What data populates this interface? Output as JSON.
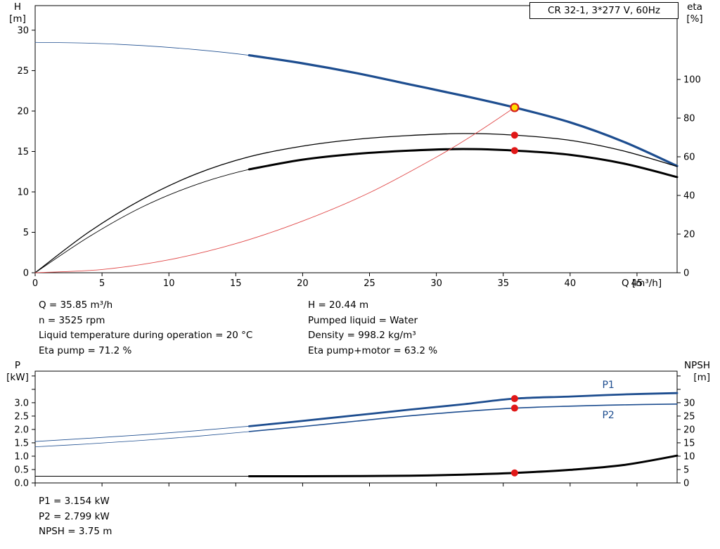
{
  "title_box": "CR 32-1, 3*277 V, 60Hz",
  "info_top": {
    "left": [
      "Q = 35.85 m³/h",
      "n = 3525 rpm",
      "Liquid temperature during operation = 20 °C",
      "Eta pump = 71.2 %"
    ],
    "right": [
      "H = 20.44 m",
      "Pumped liquid = Water",
      "Density = 998.2 kg/m³",
      "Eta pump+motor = 63.2 %"
    ]
  },
  "info_bottom": [
    "P1 = 3.154 kW",
    "P2 = 2.799 kW",
    "NPSH = 3.75 m"
  ],
  "colors": {
    "curve_blue": "#1d4d8f",
    "curve_black": "#000000",
    "system_red": "#e04848",
    "dot_red": "#e01818",
    "dot_yellow": "#ffdf00"
  },
  "chart_data": [
    {
      "type": "line",
      "title": "CR 32-1, 3*277 V, 60Hz",
      "x_label": "Q [m³/h]",
      "y_left_label": "H",
      "y_left_unit": "[m]",
      "y_right_label": "eta",
      "y_right_unit": "[%]",
      "x_range": [
        0,
        48
      ],
      "y_left_range": [
        0,
        33.04
      ],
      "y_right_range": [
        0,
        138.2
      ],
      "grid": false,
      "x_ticks": [
        {
          "v": 0,
          "label": "0"
        },
        {
          "v": 5,
          "label": "5"
        },
        {
          "v": 10,
          "label": "10"
        },
        {
          "v": 15,
          "label": "15"
        },
        {
          "v": 20,
          "label": "20"
        },
        {
          "v": 25,
          "label": "25"
        },
        {
          "v": 30,
          "label": "30"
        },
        {
          "v": 35,
          "label": "35"
        },
        {
          "v": 40,
          "label": "40"
        },
        {
          "v": 45,
          "label": "45"
        }
      ],
      "left_ticks": [
        {
          "v": 0,
          "label": "0"
        },
        {
          "v": 5,
          "label": "5"
        },
        {
          "v": 10,
          "label": "10"
        },
        {
          "v": 15,
          "label": "15"
        },
        {
          "v": 20,
          "label": "20"
        },
        {
          "v": 25,
          "label": "25"
        },
        {
          "v": 30,
          "label": "30"
        }
      ],
      "right_ticks": [
        {
          "v": 0,
          "label": "0"
        },
        {
          "v": 20,
          "label": "20"
        },
        {
          "v": 40,
          "label": "40"
        },
        {
          "v": 60,
          "label": "60"
        },
        {
          "v": 80,
          "label": "80"
        },
        {
          "v": 100,
          "label": "100"
        }
      ],
      "series": [
        {
          "name": "head-curve-H-Q",
          "axis": "left",
          "color": "#1d4d8f",
          "width_thin": 0.8,
          "width_thick": 3.2,
          "thick_from": 16,
          "points": [
            [
              0,
              28.5
            ],
            [
              4,
              28.4
            ],
            [
              8,
              28.1
            ],
            [
              12,
              27.6
            ],
            [
              16,
              26.9
            ],
            [
              20,
              25.9
            ],
            [
              24,
              24.7
            ],
            [
              28,
              23.3
            ],
            [
              32,
              21.9
            ],
            [
              35.85,
              20.44
            ],
            [
              40,
              18.6
            ],
            [
              44,
              16.2
            ],
            [
              48,
              13.2
            ]
          ]
        },
        {
          "name": "eta-pump",
          "axis": "right",
          "color": "#000000",
          "width_thin": 1.3,
          "width_thick": null,
          "thick_from": null,
          "points": [
            [
              0,
              0
            ],
            [
              4,
              21
            ],
            [
              8,
              38
            ],
            [
              12,
              51
            ],
            [
              16,
              60
            ],
            [
              20,
              65.5
            ],
            [
              24,
              69
            ],
            [
              28,
              71
            ],
            [
              32,
              72
            ],
            [
              35.85,
              71.2
            ],
            [
              40,
              68.5
            ],
            [
              44,
              63
            ],
            [
              48,
              55
            ]
          ]
        },
        {
          "name": "eta-pump-plus-motor",
          "axis": "right",
          "color": "#000000",
          "width_thin": 0.9,
          "width_thick": 3,
          "thick_from": 16,
          "points": [
            [
              0,
              0
            ],
            [
              4,
              18.5
            ],
            [
              8,
              34
            ],
            [
              12,
              45.5
            ],
            [
              16,
              53.5
            ],
            [
              20,
              58.5
            ],
            [
              24,
              61.5
            ],
            [
              28,
              63.2
            ],
            [
              32,
              64
            ],
            [
              35.85,
              63.2
            ],
            [
              40,
              61
            ],
            [
              44,
              56.5
            ],
            [
              48,
              49.5
            ]
          ]
        },
        {
          "name": "system-curve",
          "axis": "left",
          "color": "#e04848",
          "width_thin": 0.9,
          "width_thick": null,
          "thick_from": null,
          "points": [
            [
              0,
              0
            ],
            [
              5,
              0.4
            ],
            [
              10,
              1.6
            ],
            [
              15,
              3.6
            ],
            [
              20,
              6.4
            ],
            [
              25,
              9.9
            ],
            [
              30,
              14.3
            ],
            [
              33,
              17.3
            ],
            [
              35.85,
              20.44
            ]
          ]
        }
      ],
      "markers": [
        {
          "name": "duty-point",
          "q": 35.85,
          "v": 20.44,
          "axis": "left",
          "fill": "#ffdf00",
          "stroke": "#d42020",
          "r": 5.5
        },
        {
          "name": "eta-pump-point",
          "q": 35.85,
          "v": 71.2,
          "axis": "right",
          "fill": "#e01818",
          "r": 5
        },
        {
          "name": "eta-total-point",
          "q": 35.85,
          "v": 63.2,
          "axis": "right",
          "fill": "#e01818",
          "r": 5
        }
      ],
      "annotations": []
    },
    {
      "type": "line",
      "title": "",
      "x_label": "",
      "y_left_label": "P",
      "y_left_unit": "[kW]",
      "y_right_label": "NPSH",
      "y_right_unit": "[m]",
      "x_range": [
        0,
        48
      ],
      "y_left_range": [
        0,
        4.18
      ],
      "y_right_range": [
        0,
        41.8
      ],
      "grid": false,
      "x_ticks": [
        {
          "v": 0,
          "label": ""
        },
        {
          "v": 5,
          "label": ""
        },
        {
          "v": 10,
          "label": ""
        },
        {
          "v": 15,
          "label": ""
        },
        {
          "v": 20,
          "label": ""
        },
        {
          "v": 25,
          "label": ""
        },
        {
          "v": 30,
          "label": ""
        },
        {
          "v": 35,
          "label": ""
        },
        {
          "v": 40,
          "label": ""
        },
        {
          "v": 45,
          "label": ""
        }
      ],
      "left_ticks": [
        {
          "v": 0,
          "label": "0.0"
        },
        {
          "v": 0.5,
          "label": "0.5"
        },
        {
          "v": 1,
          "label": "1.0"
        },
        {
          "v": 1.5,
          "label": "1.5"
        },
        {
          "v": 2,
          "label": "2.0"
        },
        {
          "v": 2.5,
          "label": "2.5"
        },
        {
          "v": 3,
          "label": "3.0"
        },
        {
          "v": 3.5,
          "label": ""
        },
        {
          "v": 4,
          "label": ""
        }
      ],
      "right_ticks": [
        {
          "v": 0,
          "label": "0"
        },
        {
          "v": 5,
          "label": "5"
        },
        {
          "v": 10,
          "label": "10"
        },
        {
          "v": 15,
          "label": "15"
        },
        {
          "v": 20,
          "label": "20"
        },
        {
          "v": 25,
          "label": "25"
        },
        {
          "v": 30,
          "label": "30"
        },
        {
          "v": 35,
          "label": ""
        },
        {
          "v": 40,
          "label": ""
        }
      ],
      "series": [
        {
          "name": "P1-power",
          "axis": "left",
          "color": "#1d4d8f",
          "width_thin": 0.9,
          "width_thick": 2.8,
          "thick_from": 16,
          "points": [
            [
              0,
              1.55
            ],
            [
              4,
              1.67
            ],
            [
              8,
              1.8
            ],
            [
              12,
              1.95
            ],
            [
              16,
              2.12
            ],
            [
              20,
              2.32
            ],
            [
              24,
              2.53
            ],
            [
              28,
              2.74
            ],
            [
              32,
              2.94
            ],
            [
              35.85,
              3.154
            ],
            [
              40,
              3.23
            ],
            [
              44,
              3.31
            ],
            [
              48,
              3.36
            ]
          ]
        },
        {
          "name": "P2-power",
          "axis": "left",
          "color": "#1d4d8f",
          "width_thin": 0.8,
          "width_thick": 1.6,
          "thick_from": 16,
          "points": [
            [
              0,
              1.35
            ],
            [
              4,
              1.46
            ],
            [
              8,
              1.59
            ],
            [
              12,
              1.74
            ],
            [
              16,
              1.92
            ],
            [
              20,
              2.11
            ],
            [
              24,
              2.31
            ],
            [
              28,
              2.51
            ],
            [
              32,
              2.67
            ],
            [
              35.85,
              2.799
            ],
            [
              40,
              2.87
            ],
            [
              44,
              2.92
            ],
            [
              48,
              2.95
            ]
          ]
        },
        {
          "name": "NPSH-curve",
          "axis": "right",
          "color": "#000000",
          "width_thin": 0.9,
          "width_thick": 3,
          "thick_from": 16,
          "points": [
            [
              0,
              2.5
            ],
            [
              8,
              2.5
            ],
            [
              16,
              2.5
            ],
            [
              20,
              2.5
            ],
            [
              24,
              2.55
            ],
            [
              28,
              2.7
            ],
            [
              32,
              3.1
            ],
            [
              35.85,
              3.75
            ],
            [
              40,
              4.9
            ],
            [
              44,
              6.7
            ],
            [
              48,
              10.2
            ]
          ]
        }
      ],
      "markers": [
        {
          "name": "P1-point",
          "q": 35.85,
          "v": 3.154,
          "axis": "left",
          "fill": "#e01818",
          "r": 5
        },
        {
          "name": "P2-point",
          "q": 35.85,
          "v": 2.799,
          "axis": "left",
          "fill": "#e01818",
          "r": 5
        },
        {
          "name": "NPSH-point",
          "q": 35.85,
          "v": 3.75,
          "axis": "right",
          "fill": "#e01818",
          "r": 5
        }
      ],
      "annotations": [
        {
          "text": "P1",
          "q": 42.4,
          "v": 3.55,
          "axis": "left",
          "color": "#1d4d8f"
        },
        {
          "text": "P2",
          "q": 42.4,
          "v": 2.42,
          "axis": "left",
          "color": "#1d4d8f"
        }
      ]
    }
  ]
}
